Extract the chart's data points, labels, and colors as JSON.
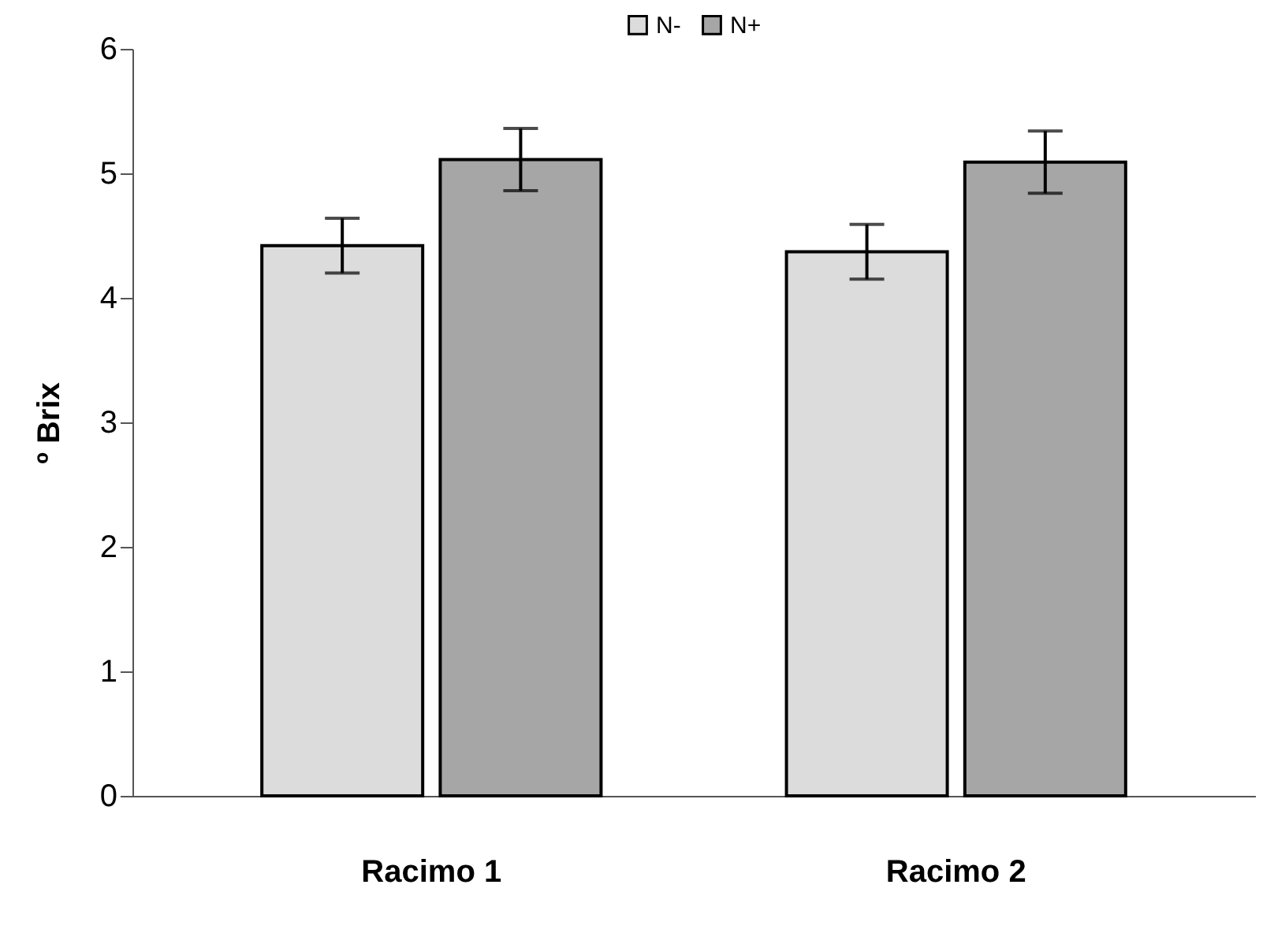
{
  "chart_data": {
    "type": "bar",
    "ylabel": "º Brix",
    "categories": [
      "Racimo 1",
      "Racimo 2"
    ],
    "series": [
      {
        "name": "N-",
        "color": "#dcdcdc",
        "values": [
          4.42,
          4.37
        ],
        "errors": [
          0.22,
          0.22
        ]
      },
      {
        "name": "N+",
        "color": "#a6a6a6",
        "values": [
          5.11,
          5.09
        ],
        "errors": [
          0.25,
          0.25
        ]
      }
    ],
    "ylim": [
      0,
      6
    ],
    "yticks": [
      0,
      1,
      2,
      3,
      4,
      5,
      6
    ],
    "grid": false,
    "legend": "top"
  }
}
